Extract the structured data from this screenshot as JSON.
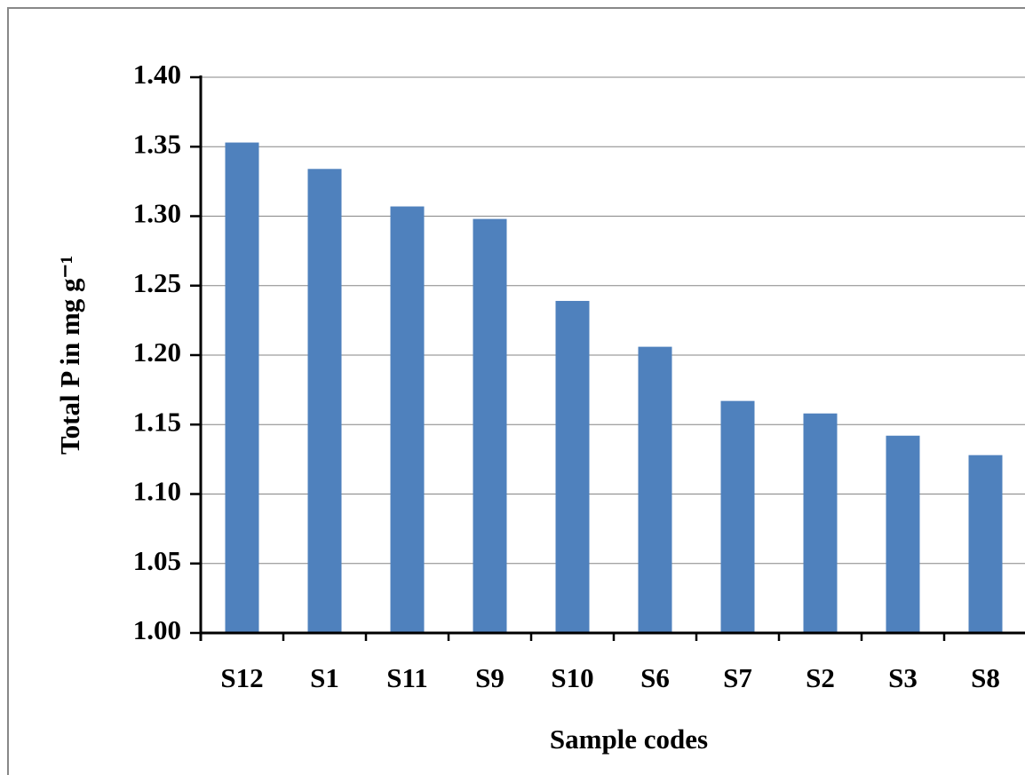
{
  "chart_data": {
    "type": "bar",
    "x_label": "Sample codes",
    "y_label": "Total P in mg g⁻¹",
    "categories": [
      "S12",
      "S1",
      "S11",
      "S9",
      "S10",
      "S6",
      "S7",
      "S2",
      "S3",
      "S8"
    ],
    "values": [
      1.353,
      1.334,
      1.307,
      1.298,
      1.239,
      1.206,
      1.167,
      1.158,
      1.142,
      1.128
    ],
    "color": "#4f81bd",
    "ylim": [
      1.0,
      1.4
    ],
    "yticks": [
      {
        "value": 1.0,
        "label": "1.00"
      },
      {
        "value": 1.05,
        "label": "1.05"
      },
      {
        "value": 1.1,
        "label": "1.10"
      },
      {
        "value": 1.15,
        "label": "1.15"
      },
      {
        "value": 1.2,
        "label": "1.20"
      },
      {
        "value": 1.25,
        "label": "1.25"
      },
      {
        "value": 1.3,
        "label": "1.30"
      },
      {
        "value": 1.35,
        "label": "1.35"
      },
      {
        "value": 1.4,
        "label": "1.40"
      }
    ],
    "grid": true
  }
}
